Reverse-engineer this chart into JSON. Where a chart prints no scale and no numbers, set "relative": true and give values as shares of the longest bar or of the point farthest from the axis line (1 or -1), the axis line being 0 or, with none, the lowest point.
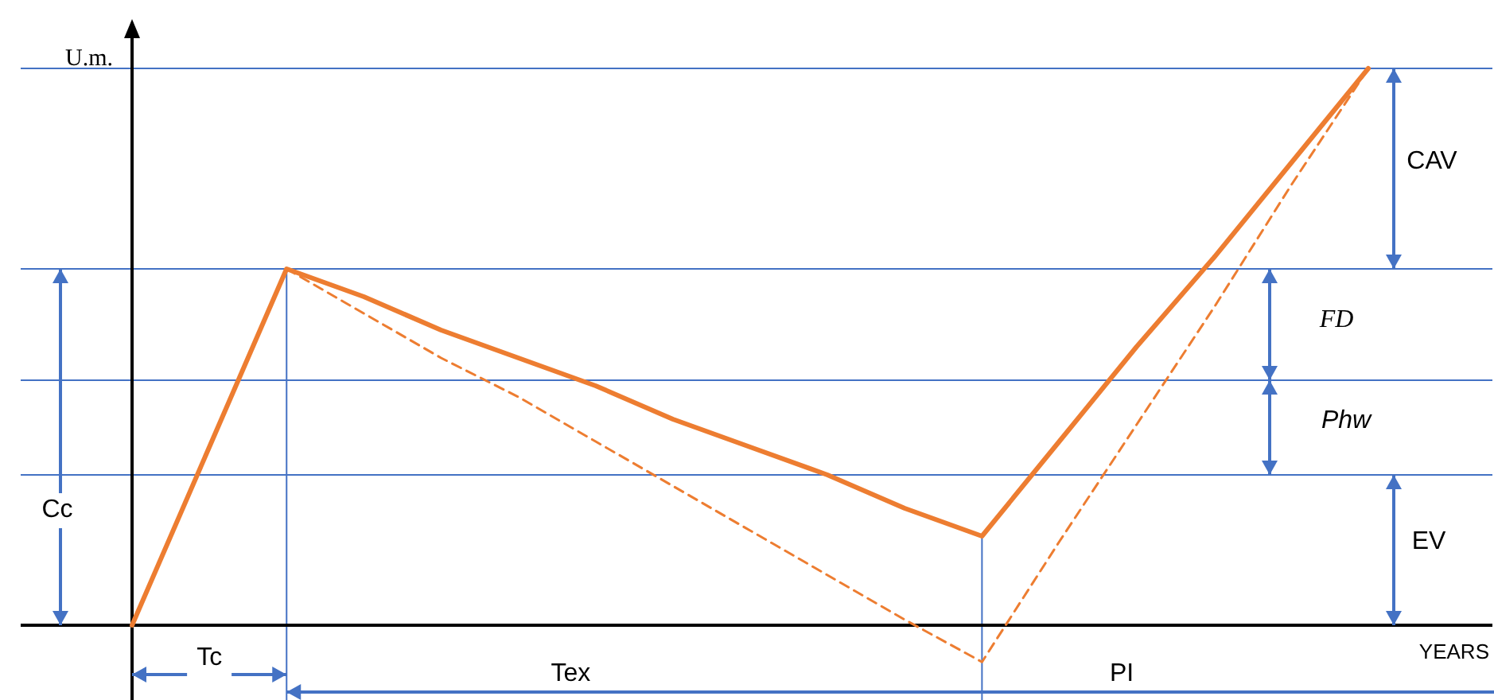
{
  "chart_data": {
    "type": "line",
    "relative": true,
    "ylabel": "U.m.",
    "xlabel": "YEARS",
    "categories": [
      null,
      null,
      null,
      null,
      null,
      null,
      null,
      null,
      null,
      null,
      null,
      null,
      null,
      null,
      null,
      null,
      null
    ],
    "series": [
      {
        "color": "#ed7d31",
        "line_style": "solid",
        "values": [
          0,
          0.32,
          0.64,
          0.59,
          0.53,
          0.48,
          0.43,
          0.37,
          0.32,
          0.27,
          0.21,
          0.16,
          0.33,
          0.5,
          0.66,
          0.83,
          1
        ]
      },
      {
        "color": "#ed7d31",
        "line_style": "dashed",
        "values": [
          null,
          null,
          0.64,
          0.56,
          0.48,
          0.41,
          0.33,
          0.25,
          0.17,
          0.09,
          0.01,
          -0.066,
          0.15,
          0.36,
          0.57,
          0.79,
          1
        ]
      }
    ],
    "ref_lines": [
      {
        "axis": "y",
        "value": 1,
        "color": "#4472c4"
      },
      {
        "axis": "y",
        "value": 0.64,
        "color": "#4472c4"
      },
      {
        "axis": "y",
        "value": 0.44,
        "color": "#4472c4"
      },
      {
        "axis": "y",
        "value": 0.27,
        "color": "#4472c4"
      }
    ],
    "annotations": [
      "Cc",
      "Tc",
      "Tex",
      "PI",
      "CAV",
      "FD",
      "Phw",
      "EV"
    ]
  }
}
